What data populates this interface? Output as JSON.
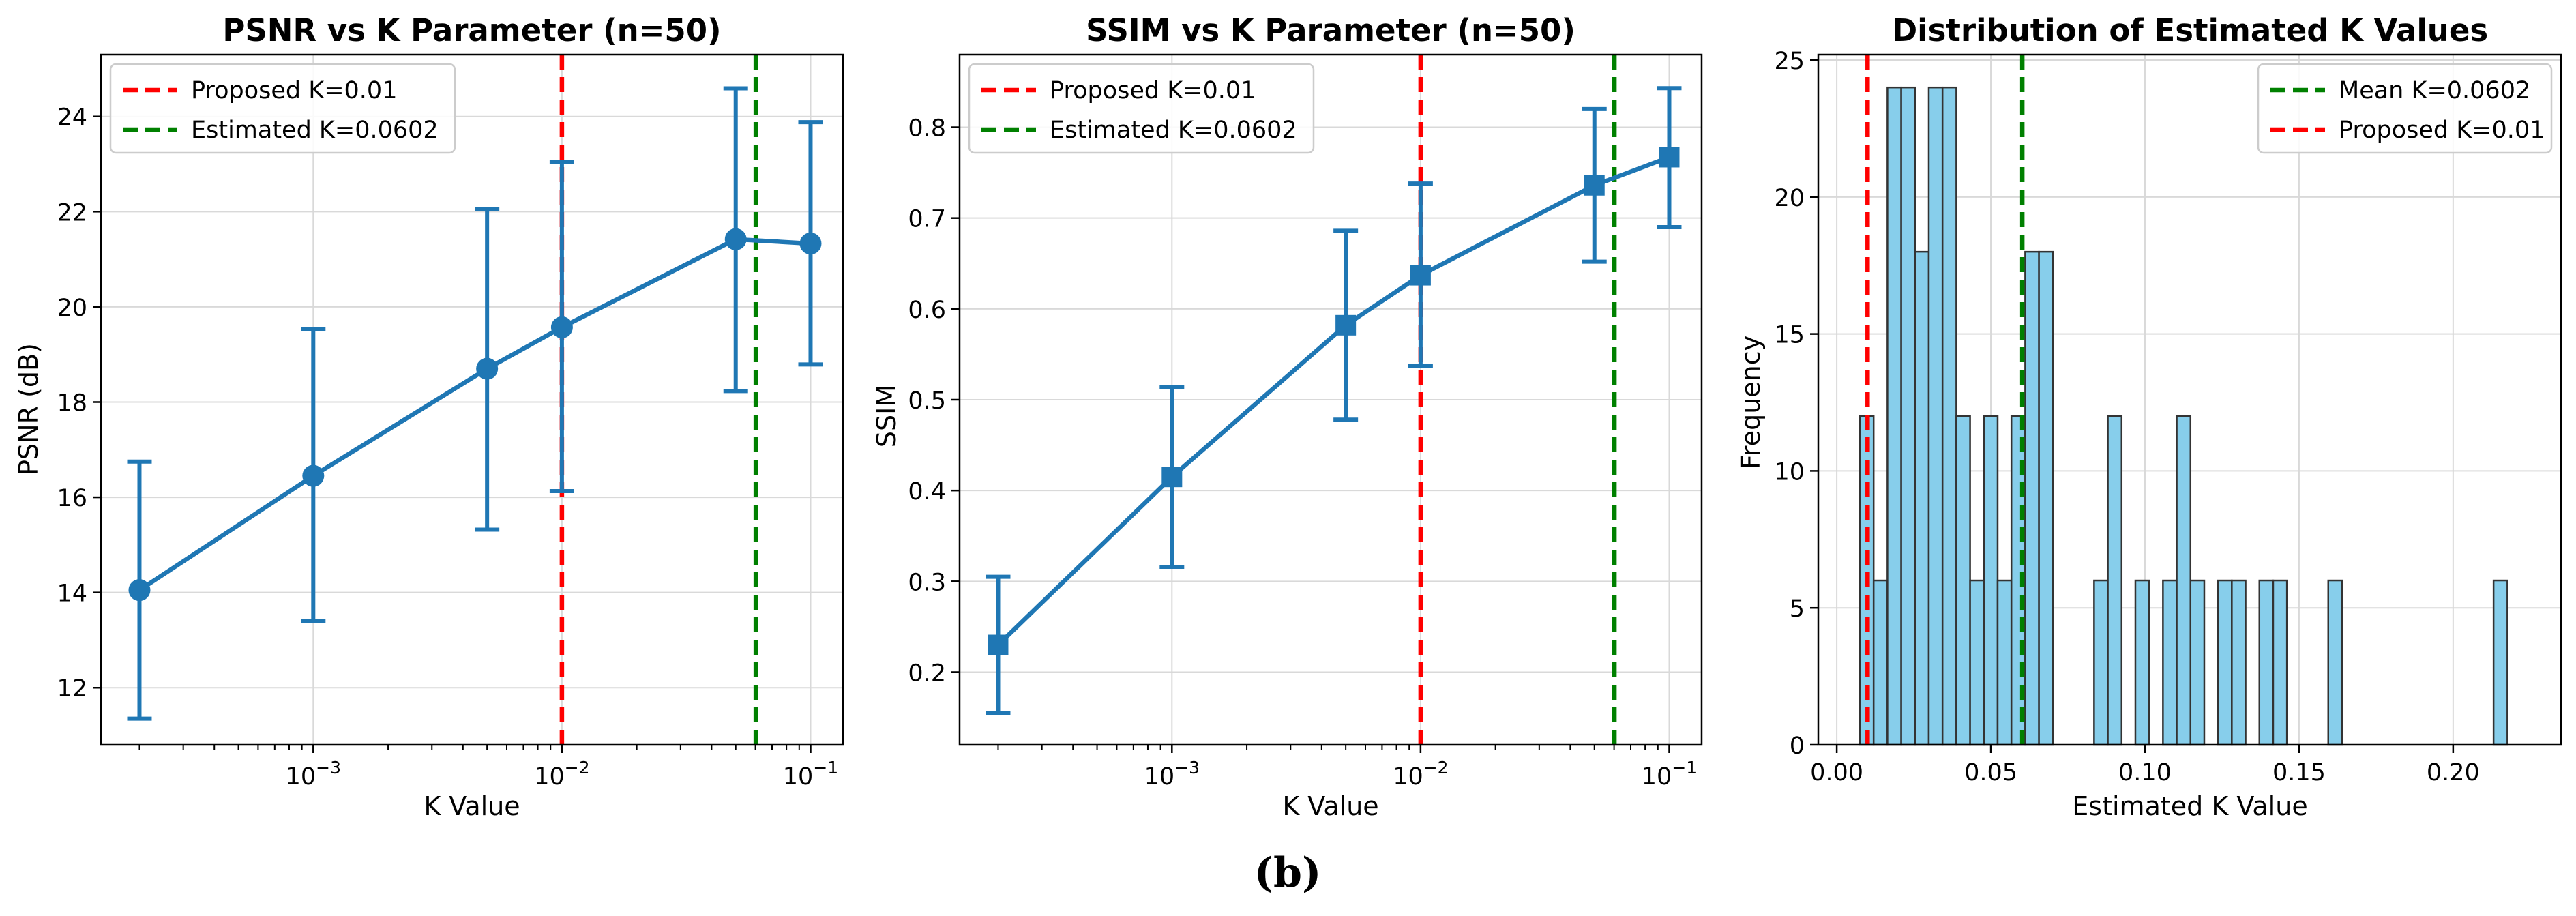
{
  "figure_caption": "(b)",
  "colors": {
    "series": "#1f77b4",
    "proposed": "#ff0000",
    "estimated": "#008000",
    "hist_fill": "#87ceeb",
    "hist_edge": "#333333",
    "grid": "#d9d9d9"
  },
  "chart_data": [
    {
      "type": "line",
      "title": "PSNR vs K Parameter (n=50)",
      "xlabel": "K Value",
      "ylabel": "PSNR (dB)",
      "xscale": "log",
      "xlim": [
        0.00014,
        0.135
      ],
      "ylim": [
        10.8,
        25.3
      ],
      "grid": true,
      "legend_position": "upper-left",
      "marker": "circle",
      "x": [
        0.0002,
        0.001,
        0.005,
        0.01,
        0.05,
        0.1
      ],
      "y": [
        14.05,
        16.45,
        18.7,
        19.57,
        21.42,
        21.33
      ],
      "yerr_low": [
        11.35,
        13.4,
        15.32,
        16.13,
        18.23,
        18.79
      ],
      "yerr_high": [
        16.75,
        19.53,
        22.06,
        23.04,
        24.59,
        23.88
      ],
      "yticks": [
        {
          "v": 12,
          "label": "12"
        },
        {
          "v": 14,
          "label": "14"
        },
        {
          "v": 16,
          "label": "16"
        },
        {
          "v": 18,
          "label": "18"
        },
        {
          "v": 20,
          "label": "20"
        },
        {
          "v": 22,
          "label": "22"
        },
        {
          "v": 24,
          "label": "24"
        }
      ],
      "xticks": [
        {
          "v": 0.001,
          "base": "10",
          "exp": "−3"
        },
        {
          "v": 0.01,
          "base": "10",
          "exp": "−2"
        },
        {
          "v": 0.1,
          "base": "10",
          "exp": "−1"
        }
      ],
      "vlines": [
        {
          "x": 0.01,
          "label": "Proposed K=0.01",
          "color_key": "proposed"
        },
        {
          "x": 0.0602,
          "label": "Estimated K=0.0602",
          "color_key": "estimated"
        }
      ]
    },
    {
      "type": "line",
      "title": "SSIM vs K Parameter (n=50)",
      "xlabel": "K Value",
      "ylabel": "SSIM",
      "xscale": "log",
      "xlim": [
        0.00014,
        0.135
      ],
      "ylim": [
        0.12,
        0.88
      ],
      "grid": true,
      "legend_position": "upper-left",
      "marker": "square",
      "x": [
        0.0002,
        0.001,
        0.005,
        0.01,
        0.05,
        0.1
      ],
      "y": [
        0.23,
        0.415,
        0.582,
        0.637,
        0.736,
        0.767
      ],
      "yerr_low": [
        0.155,
        0.316,
        0.478,
        0.537,
        0.652,
        0.69
      ],
      "yerr_high": [
        0.305,
        0.514,
        0.686,
        0.738,
        0.82,
        0.843
      ],
      "yticks": [
        {
          "v": 0.2,
          "label": "0.2"
        },
        {
          "v": 0.3,
          "label": "0.3"
        },
        {
          "v": 0.4,
          "label": "0.4"
        },
        {
          "v": 0.5,
          "label": "0.5"
        },
        {
          "v": 0.6,
          "label": "0.6"
        },
        {
          "v": 0.7,
          "label": "0.7"
        },
        {
          "v": 0.8,
          "label": "0.8"
        }
      ],
      "xticks": [
        {
          "v": 0.001,
          "base": "10",
          "exp": "−3"
        },
        {
          "v": 0.01,
          "base": "10",
          "exp": "−2"
        },
        {
          "v": 0.1,
          "base": "10",
          "exp": "−1"
        }
      ],
      "vlines": [
        {
          "x": 0.01,
          "label": "Proposed K=0.01",
          "color_key": "proposed"
        },
        {
          "x": 0.0602,
          "label": "Estimated K=0.0602",
          "color_key": "estimated"
        }
      ]
    },
    {
      "type": "histogram",
      "title": "Distribution of Estimated K Values",
      "xlabel": "Estimated K Value",
      "ylabel": "Frequency",
      "xlim": [
        -0.006,
        0.235
      ],
      "ylim": [
        0,
        25.2
      ],
      "grid": true,
      "legend_position": "upper-right",
      "bin_start": 0.0075,
      "bin_width": 0.00447,
      "counts": [
        12,
        6,
        24,
        24,
        18,
        24,
        24,
        12,
        6,
        12,
        6,
        12,
        18,
        18,
        0,
        0,
        0,
        6,
        12,
        0,
        6,
        0,
        6,
        12,
        6,
        0,
        6,
        6,
        0,
        6,
        6,
        0,
        0,
        0,
        6,
        0,
        0,
        0,
        0,
        0,
        0,
        0,
        0,
        0,
        0,
        0,
        6
      ],
      "yticks": [
        {
          "v": 0,
          "label": "0"
        },
        {
          "v": 5,
          "label": "5"
        },
        {
          "v": 10,
          "label": "10"
        },
        {
          "v": 15,
          "label": "15"
        },
        {
          "v": 20,
          "label": "20"
        },
        {
          "v": 25,
          "label": "25"
        }
      ],
      "xticks": [
        {
          "v": 0,
          "label": "0.00"
        },
        {
          "v": 0.05,
          "label": "0.05"
        },
        {
          "v": 0.1,
          "label": "0.10"
        },
        {
          "v": 0.15,
          "label": "0.15"
        },
        {
          "v": 0.2,
          "label": "0.20"
        }
      ],
      "vlines": [
        {
          "x": 0.0602,
          "label": "Mean K=0.0602",
          "color_key": "estimated"
        },
        {
          "x": 0.01,
          "label": "Proposed K=0.01",
          "color_key": "proposed"
        }
      ]
    }
  ]
}
